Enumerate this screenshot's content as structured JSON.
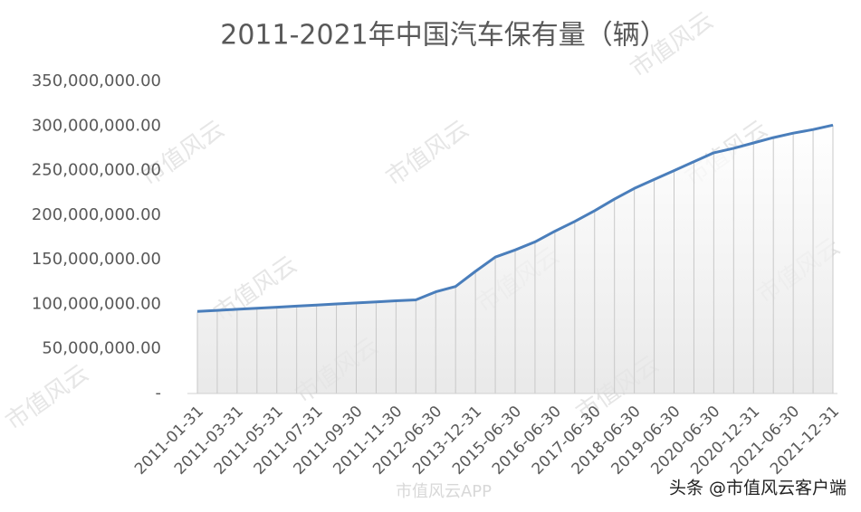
{
  "chart_data": {
    "type": "line",
    "title": "2011-2021年中国汽车保有量（辆）",
    "categories": [
      "2011-01-31",
      null,
      "2011-03-31",
      null,
      "2011-05-31",
      null,
      "2011-07-31",
      null,
      "2011-09-30",
      null,
      "2011-11-30",
      null,
      "2012-06-30",
      null,
      "2013-12-31",
      null,
      "2015-06-30",
      null,
      "2016-06-30",
      null,
      "2017-06-30",
      null,
      "2018-06-30",
      null,
      "2019-06-30",
      null,
      "2020-06-30",
      null,
      "2020-12-31",
      null,
      "2021-06-30",
      null,
      "2021-12-31"
    ],
    "values": [
      92000000,
      93200000,
      94400000,
      95600000,
      96800000,
      98000000,
      99200000,
      100400000,
      101600000,
      102800000,
      104000000,
      105000000,
      114000000,
      120000000,
      137000000,
      153000000,
      161000000,
      170000000,
      182000000,
      193000000,
      205000000,
      218000000,
      230000000,
      240000000,
      250000000,
      260000000,
      270000000,
      275000000,
      281000000,
      287000000,
      292000000,
      296000000,
      301000000
    ],
    "color": "#4a7ebb",
    "ylim": [
      0,
      350000000
    ],
    "yticks": [
      {
        "value": 0,
        "label": "-"
      },
      {
        "value": 50000000,
        "label": "50,000,000.00"
      },
      {
        "value": 100000000,
        "label": "100,000,000.00"
      },
      {
        "value": 150000000,
        "label": "150,000,000.00"
      },
      {
        "value": 200000000,
        "label": "200,000,000.00"
      },
      {
        "value": 250000000,
        "label": "250,000,000.00"
      },
      {
        "value": 300000000,
        "label": "300,000,000.00"
      },
      {
        "value": 350000000,
        "label": "350,000,000.00"
      }
    ],
    "drop_lines": true
  },
  "watermark": "市值风云",
  "footer_center": "市值风云APP",
  "footer_right": "头条 @市值风云客户端"
}
